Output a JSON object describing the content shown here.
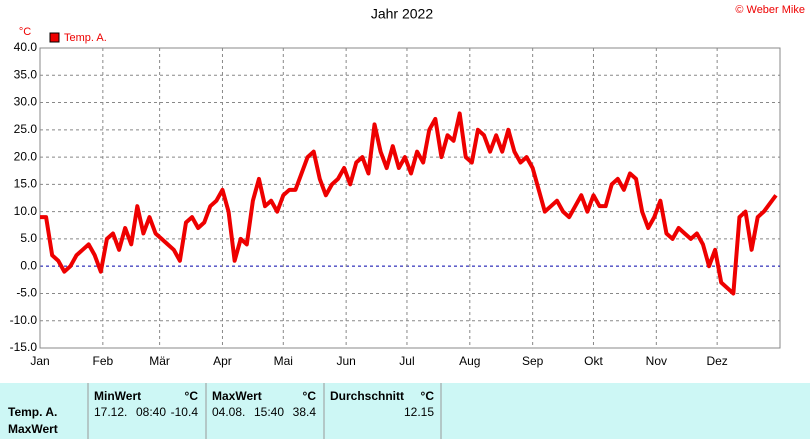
{
  "chart_data": {
    "type": "line",
    "title": "Jahr 2022",
    "copyright": "© Weber Mike",
    "y_unit": "°C",
    "xlim": [
      0,
      365
    ],
    "xticks": [
      {
        "value": 0,
        "label": "Jan"
      },
      {
        "value": 31,
        "label": "Feb"
      },
      {
        "value": 59,
        "label": "Mär"
      },
      {
        "value": 90,
        "label": "Apr"
      },
      {
        "value": 120,
        "label": "Mai"
      },
      {
        "value": 151,
        "label": "Jun"
      },
      {
        "value": 181,
        "label": "Jul"
      },
      {
        "value": 212,
        "label": "Aug"
      },
      {
        "value": 243,
        "label": "Sep"
      },
      {
        "value": 273,
        "label": "Okt"
      },
      {
        "value": 304,
        "label": "Nov"
      },
      {
        "value": 334,
        "label": "Dez"
      }
    ],
    "ylim": [
      -15,
      40
    ],
    "yticks": [
      {
        "value": -15,
        "label": "-15.0"
      },
      {
        "value": -10,
        "label": "-10.0"
      },
      {
        "value": -5,
        "label": "-5.0"
      },
      {
        "value": 0,
        "label": "0.0"
      },
      {
        "value": 5,
        "label": "5.0"
      },
      {
        "value": 10,
        "label": "10.0"
      },
      {
        "value": 15,
        "label": "15.0"
      },
      {
        "value": 20,
        "label": "20.0"
      },
      {
        "value": 25,
        "label": "25.0"
      },
      {
        "value": 30,
        "label": "30.0"
      },
      {
        "value": 35,
        "label": "35.0"
      },
      {
        "value": 40,
        "label": "40.0"
      }
    ],
    "grid": true,
    "series": [
      {
        "name": "Temp. A.",
        "color": "#ee0000",
        "x": [
          0,
          3,
          6,
          9,
          12,
          15,
          18,
          21,
          24,
          27,
          30,
          33,
          36,
          39,
          42,
          45,
          48,
          51,
          54,
          57,
          60,
          63,
          66,
          69,
          72,
          75,
          78,
          81,
          84,
          87,
          90,
          93,
          96,
          99,
          102,
          105,
          108,
          111,
          114,
          117,
          120,
          123,
          126,
          129,
          132,
          135,
          138,
          141,
          144,
          147,
          150,
          153,
          156,
          159,
          162,
          165,
          168,
          171,
          174,
          177,
          180,
          183,
          186,
          189,
          192,
          195,
          198,
          201,
          204,
          207,
          210,
          213,
          216,
          219,
          222,
          225,
          228,
          231,
          234,
          237,
          240,
          243,
          246,
          249,
          252,
          255,
          258,
          261,
          264,
          267,
          270,
          273,
          276,
          279,
          282,
          285,
          288,
          291,
          294,
          297,
          300,
          303,
          306,
          309,
          312,
          315,
          318,
          321,
          324,
          327,
          330,
          333,
          336,
          339,
          342,
          345,
          348,
          351,
          354,
          357,
          363
        ],
        "values": [
          9,
          9,
          2,
          1,
          -1,
          0,
          2,
          3,
          4,
          2,
          -1,
          5,
          6,
          3,
          7,
          4,
          11,
          6,
          9,
          6,
          5,
          4,
          3,
          1,
          8,
          9,
          7,
          8,
          11,
          12,
          14,
          10,
          1,
          5,
          4,
          12,
          16,
          11,
          12,
          10,
          13,
          14,
          14,
          17,
          20,
          21,
          16,
          13,
          15,
          16,
          18,
          15,
          19,
          20,
          17,
          26,
          21,
          18,
          22,
          18,
          20,
          17,
          21,
          19,
          25,
          27,
          20,
          24,
          23,
          28,
          20,
          19,
          25,
          24,
          21,
          24,
          21,
          25,
          21,
          19,
          20,
          18,
          14,
          10,
          11,
          12,
          10,
          9,
          11,
          13,
          10,
          13,
          11,
          11,
          15,
          16,
          14,
          17,
          16,
          10,
          7,
          9,
          12,
          6,
          5,
          7,
          6,
          5,
          6,
          4,
          0,
          3,
          -3,
          -4,
          -5,
          9,
          10,
          3,
          9,
          10,
          13
        ]
      }
    ]
  },
  "table": {
    "row_labels": [
      "Temp. A.",
      "MaxWert"
    ],
    "columns": [
      {
        "header": "MinWert",
        "unit": "°C",
        "date": "17.12.",
        "time": "08:40",
        "value": "-10.4"
      },
      {
        "header": "MaxWert",
        "unit": "°C",
        "date": "04.08.",
        "time": "15:40",
        "value": "38.4"
      },
      {
        "header": "Durchschnitt",
        "unit": "°C",
        "value": "12.15"
      }
    ]
  }
}
